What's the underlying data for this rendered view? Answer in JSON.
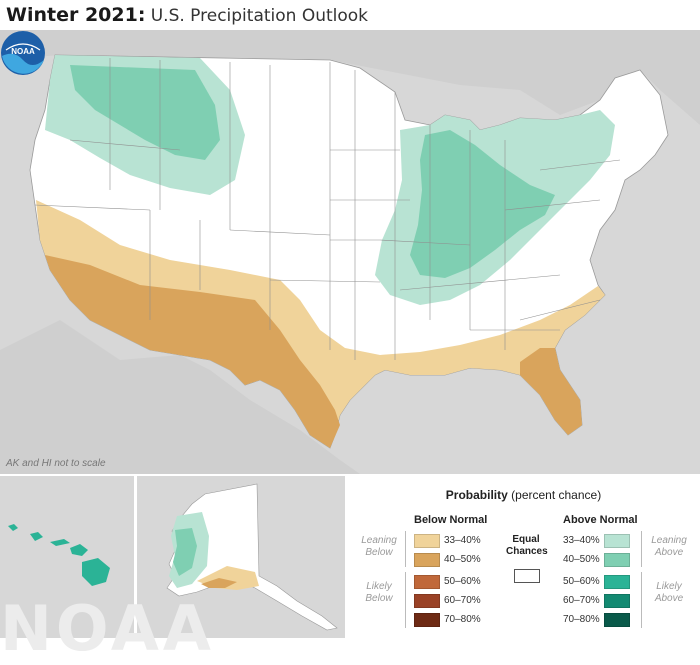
{
  "header": {
    "title_bold": "Winter 2021:",
    "title_rest": "U.S. Precipitation Outlook"
  },
  "map": {
    "scale_note": "AK and HI not to scale",
    "logo_text": "NOAA",
    "colors": {
      "background": "#d7d7d7",
      "land": "#ffffff",
      "below_33_40": "#f0d39a",
      "below_40_50": "#d9a45c",
      "above_33_40": "#b8e3d3",
      "above_40_50": "#7fcfb2"
    }
  },
  "watermark": "NOAA",
  "legend": {
    "title_bold": "Probability",
    "title_rest": "(percent chance)",
    "below_header": "Below Normal",
    "above_header": "Above Normal",
    "equal_label_1": "Equal",
    "equal_label_2": "Chances",
    "leaning_below_1": "Leaning",
    "leaning_below_2": "Below",
    "likely_below_1": "Likely",
    "likely_below_2": "Below",
    "leaning_above_1": "Leaning",
    "leaning_above_2": "Above",
    "likely_above_1": "Likely",
    "likely_above_2": "Above",
    "below": [
      {
        "label": "33–40%",
        "color": "#f0d39a"
      },
      {
        "label": "40–50%",
        "color": "#d9a45c"
      },
      {
        "label": "50–60%",
        "color": "#c0683a"
      },
      {
        "label": "60–70%",
        "color": "#9a4226"
      },
      {
        "label": "70–80%",
        "color": "#6e2a14"
      }
    ],
    "above": [
      {
        "label": "33–40%",
        "color": "#b8e3d3"
      },
      {
        "label": "40–50%",
        "color": "#7fcfb2"
      },
      {
        "label": "50–60%",
        "color": "#2bb396"
      },
      {
        "label": "60–70%",
        "color": "#138a72"
      },
      {
        "label": "70–80%",
        "color": "#0a5a4a"
      }
    ]
  }
}
